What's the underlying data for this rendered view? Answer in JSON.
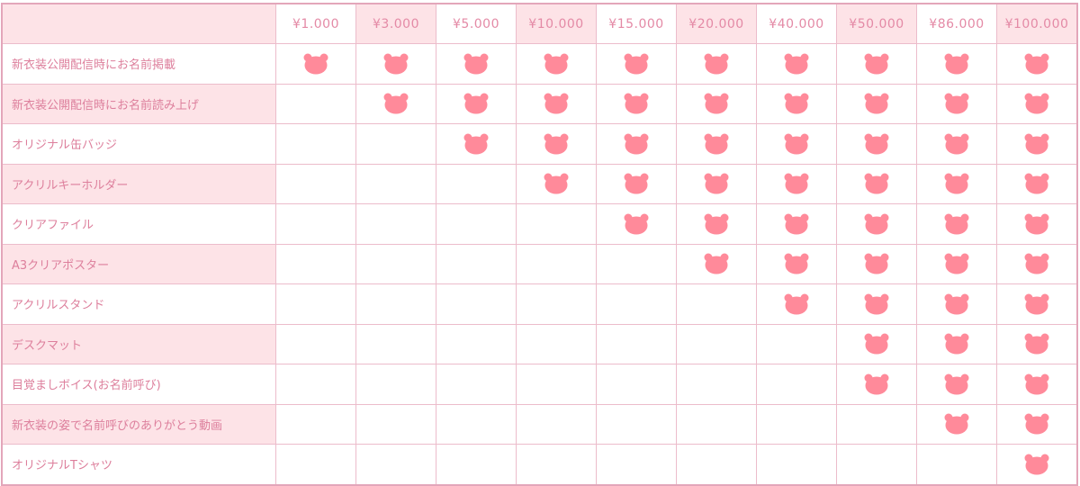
{
  "colors": {
    "bear": "#ff8a9a",
    "pink_cell": "#fde3e7",
    "border": "#e3a6ba",
    "text": "#dd7f9c"
  },
  "icon": "bear-face-icon",
  "tiers": [
    "¥1.000",
    "¥3.000",
    "¥5.000",
    "¥10.000",
    "¥15.000",
    "¥20.000",
    "¥40.000",
    "¥50.000",
    "¥86.000",
    "¥100.000"
  ],
  "rows": [
    {
      "label": "新衣装公開配信時にお名前掲載",
      "from_tier": 0
    },
    {
      "label": "新衣装公開配信時にお名前読み上げ",
      "from_tier": 1
    },
    {
      "label": "オリジナル缶バッジ",
      "from_tier": 2
    },
    {
      "label": "アクリルキーホルダー",
      "from_tier": 3
    },
    {
      "label": "クリアファイル",
      "from_tier": 4
    },
    {
      "label": "A3クリアポスター",
      "from_tier": 5
    },
    {
      "label": "アクリルスタンド",
      "from_tier": 6
    },
    {
      "label": "デスクマット",
      "from_tier": 7
    },
    {
      "label": "目覚ましボイス(お名前呼び)",
      "from_tier": 7
    },
    {
      "label": "新衣装の姿で名前呼びのありがとう動画",
      "from_tier": 8
    },
    {
      "label": "オリジナルTシャツ",
      "from_tier": 9
    }
  ]
}
